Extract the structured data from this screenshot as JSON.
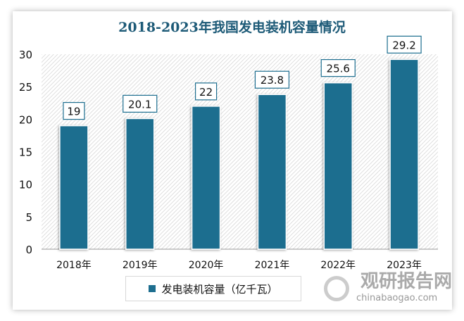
{
  "chart_data": {
    "type": "bar",
    "title": "2018-2023年我国发电装机容量情况",
    "categories": [
      "2018年",
      "2019年",
      "2020年",
      "2021年",
      "2022年",
      "2023年"
    ],
    "series": [
      {
        "name": "发电装机容量（亿千瓦）",
        "values": [
          19,
          20.1,
          22,
          23.8,
          25.6,
          29.2
        ]
      }
    ],
    "data_labels": [
      "19",
      "20.1",
      "22",
      "23.8",
      "25.6",
      "29.2"
    ],
    "ylim": [
      0,
      30
    ],
    "yticks": [
      "0",
      "5",
      "10",
      "15",
      "20",
      "25",
      "30"
    ],
    "legend_position": "bottom",
    "bar_color": "#1d6e8f",
    "title_color": "#1d5a77"
  },
  "watermark": {
    "name": "观研报告网",
    "url": "chinabaogao.com"
  }
}
